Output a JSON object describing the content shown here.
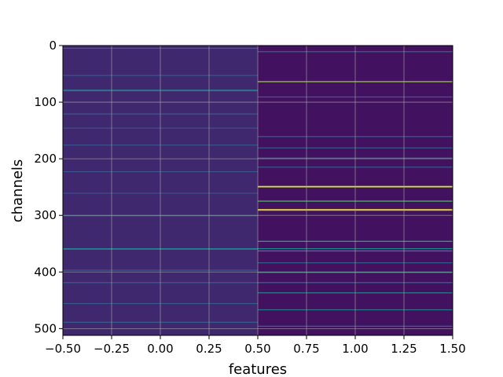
{
  "chart_data": {
    "type": "heatmap",
    "title": "",
    "xlabel": "features",
    "ylabel": "channels",
    "columns": [
      0,
      1
    ],
    "xlim": [
      -0.5,
      1.5
    ],
    "ylim": [
      512,
      0
    ],
    "y_inverted": true,
    "grid": true,
    "colormap": "viridis",
    "xticks": [
      -0.5,
      -0.25,
      0.0,
      0.25,
      0.5,
      0.75,
      1.0,
      1.25,
      1.5
    ],
    "xtick_labels": [
      "−0.50",
      "−0.25",
      "0.00",
      "0.25",
      "0.50",
      "0.75",
      "1.00",
      "1.25",
      "1.50"
    ],
    "yticks": [
      0,
      100,
      200,
      300,
      400,
      500
    ],
    "ytick_labels": [
      "0",
      "100",
      "200",
      "300",
      "400",
      "500"
    ],
    "n_channels": 512,
    "value_range": [
      0,
      1
    ],
    "background_values": [
      0.12,
      0.05
    ],
    "bright_rows": [
      {
        "column": 0,
        "channel": 4,
        "value": 0.3
      },
      {
        "column": 0,
        "channel": 52,
        "value": 0.26
      },
      {
        "column": 0,
        "channel": 78,
        "value": 0.42
      },
      {
        "column": 0,
        "channel": 79,
        "value": 0.38
      },
      {
        "column": 0,
        "channel": 120,
        "value": 0.28
      },
      {
        "column": 0,
        "channel": 145,
        "value": 0.25
      },
      {
        "column": 0,
        "channel": 175,
        "value": 0.27
      },
      {
        "column": 0,
        "channel": 222,
        "value": 0.26
      },
      {
        "column": 0,
        "channel": 260,
        "value": 0.24
      },
      {
        "column": 0,
        "channel": 300,
        "value": 0.26
      },
      {
        "column": 0,
        "channel": 358,
        "value": 0.45
      },
      {
        "column": 0,
        "channel": 359,
        "value": 0.4
      },
      {
        "column": 0,
        "channel": 396,
        "value": 0.27
      },
      {
        "column": 0,
        "channel": 418,
        "value": 0.32
      },
      {
        "column": 0,
        "channel": 455,
        "value": 0.28
      },
      {
        "column": 0,
        "channel": 488,
        "value": 0.3
      },
      {
        "column": 1,
        "channel": 10,
        "value": 0.35
      },
      {
        "column": 1,
        "channel": 63,
        "value": 0.85
      },
      {
        "column": 1,
        "channel": 90,
        "value": 0.3
      },
      {
        "column": 1,
        "channel": 160,
        "value": 0.32
      },
      {
        "column": 1,
        "channel": 180,
        "value": 0.28
      },
      {
        "column": 1,
        "channel": 198,
        "value": 0.4
      },
      {
        "column": 1,
        "channel": 214,
        "value": 0.3
      },
      {
        "column": 1,
        "channel": 248,
        "value": 0.95
      },
      {
        "column": 1,
        "channel": 249,
        "value": 0.9
      },
      {
        "column": 1,
        "channel": 274,
        "value": 0.7
      },
      {
        "column": 1,
        "channel": 289,
        "value": 0.98
      },
      {
        "column": 1,
        "channel": 290,
        "value": 0.92
      },
      {
        "column": 1,
        "channel": 345,
        "value": 0.6
      },
      {
        "column": 1,
        "channel": 358,
        "value": 0.45
      },
      {
        "column": 1,
        "channel": 362,
        "value": 0.5
      },
      {
        "column": 1,
        "channel": 383,
        "value": 0.3
      },
      {
        "column": 1,
        "channel": 400,
        "value": 0.5
      },
      {
        "column": 1,
        "channel": 418,
        "value": 0.35
      },
      {
        "column": 1,
        "channel": 436,
        "value": 0.45
      },
      {
        "column": 1,
        "channel": 466,
        "value": 0.4
      },
      {
        "column": 1,
        "channel": 495,
        "value": 0.35
      }
    ]
  }
}
